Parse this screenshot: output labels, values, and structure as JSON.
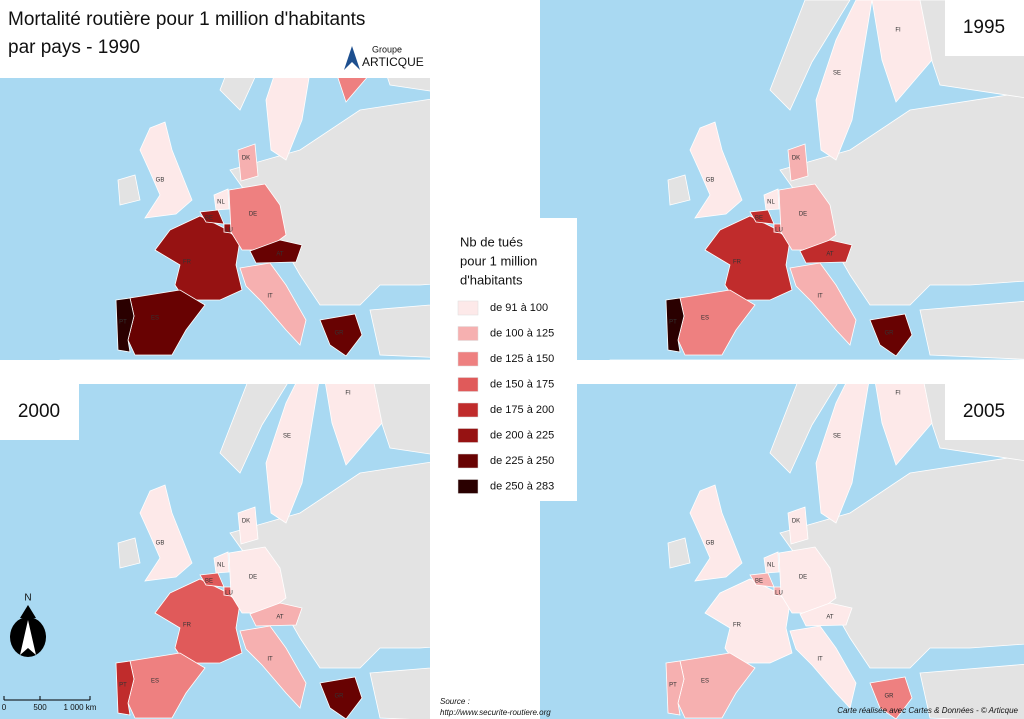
{
  "title": {
    "line1": "Mortalité routière pour 1 million d'habitants",
    "line2": "par pays - 1990"
  },
  "logo": {
    "line1": "Groupe",
    "line2": "ARTICQUE"
  },
  "legend": {
    "title": [
      "Nb de tués",
      "pour 1 million",
      "d'habitants"
    ],
    "classes": [
      {
        "label": "de 91 à 100",
        "color": "#fde9e9"
      },
      {
        "label": "de 100 à 125",
        "color": "#f6b0b0"
      },
      {
        "label": "de 125 à 150",
        "color": "#ee8080"
      },
      {
        "label": "de 150 à 175",
        "color": "#e05a5a"
      },
      {
        "label": "de 175 à 200",
        "color": "#c02c2c"
      },
      {
        "label": "de 200 à 225",
        "color": "#961212"
      },
      {
        "label": "de 225 à 250",
        "color": "#680202"
      },
      {
        "label": "de 250 à 283",
        "color": "#2a0000"
      }
    ]
  },
  "countries": [
    "GB",
    "FR",
    "ES",
    "PT",
    "BE",
    "NL",
    "LU",
    "DE",
    "DK",
    "AT",
    "IT",
    "GR",
    "SE",
    "FI"
  ],
  "maps": [
    {
      "classes": [
        0,
        5,
        6,
        7,
        5,
        0,
        5,
        2,
        1,
        6,
        1,
        6,
        0,
        2
      ]
    },
    {
      "year": "1995",
      "classes": [
        0,
        4,
        2,
        7,
        4,
        0,
        3,
        1,
        1,
        4,
        1,
        6,
        0,
        0
      ]
    },
    {
      "year": "2000",
      "classes": [
        0,
        3,
        2,
        4,
        3,
        0,
        3,
        0,
        0,
        1,
        1,
        6,
        0,
        0
      ]
    },
    {
      "year": "2005",
      "classes": [
        0,
        0,
        1,
        1,
        1,
        0,
        1,
        0,
        0,
        0,
        0,
        2,
        0,
        0
      ]
    }
  ],
  "scale": {
    "north": "N",
    "ticks": [
      "0",
      "500",
      "1 000 km"
    ]
  },
  "source": {
    "line1": "Source :",
    "line2": "http://www.securite-routiere.org"
  },
  "credit": "Carte réalisée avec Cartes & Données - © Articque"
}
